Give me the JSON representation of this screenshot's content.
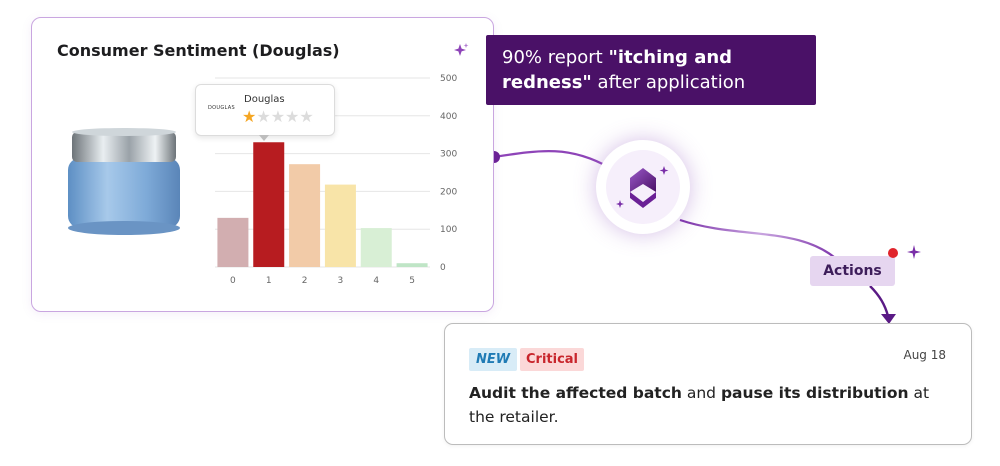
{
  "sentiment_card": {
    "title": "Consumer Sentiment (Douglas)",
    "sparkle_icon": "sparkle-icon",
    "product_image": "cosmetic-jar-icon",
    "tooltip": {
      "logo_text": "DOUGLAS",
      "name": "Douglas",
      "rating": 1,
      "max_rating": 5
    }
  },
  "chart_data": {
    "type": "bar",
    "categories": [
      "0",
      "1",
      "2",
      "3",
      "4",
      "5"
    ],
    "values": [
      130,
      330,
      272,
      218,
      103,
      10
    ],
    "highlighted_category": "1",
    "colors": [
      "#d2aeb0",
      "#b71c20",
      "#f2cba8",
      "#f8e4a8",
      "#d8efd5",
      "#bfe5c6"
    ],
    "y_ticks": [
      "0",
      "100",
      "200",
      "300",
      "400",
      "500"
    ],
    "ylim": [
      0,
      500
    ],
    "y_axis_position": "right",
    "grid": true
  },
  "insight": {
    "prefix": "90% report ",
    "highlight": "\"itching and redness\"",
    "suffix": " after application",
    "background": "#4a1167"
  },
  "hub": {
    "icon": "copilot-logo-icon"
  },
  "actions": {
    "label": "Actions",
    "notification_dot_color": "#e0242c"
  },
  "task": {
    "badge_new": "NEW",
    "badge_critical": "Critical",
    "date": "Aug 18",
    "text_bold_1": "Audit the affected batch",
    "text_plain_1": " and ",
    "text_bold_2": "pause its distribution",
    "text_plain_2": " at the retailer."
  }
}
